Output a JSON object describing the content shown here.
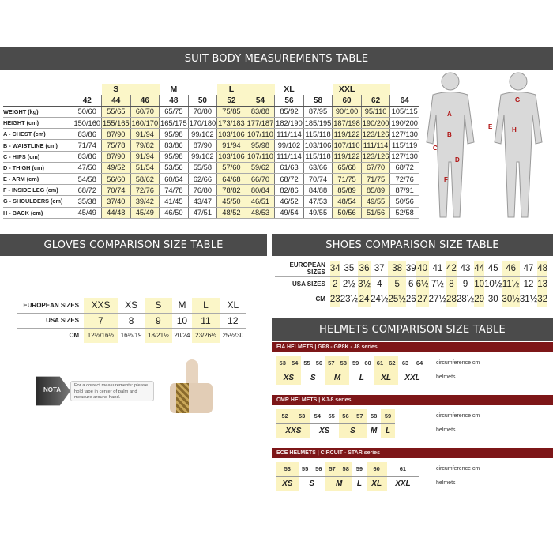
{
  "suit": {
    "title": "SUIT BODY MEASUREMENTS TABLE",
    "groups": [
      "",
      "",
      "S",
      "",
      "M",
      "",
      "L",
      "",
      "XL",
      "",
      "XXL",
      "",
      ""
    ],
    "group_hl": [
      false,
      true,
      true,
      false,
      false,
      true,
      true,
      false,
      false,
      true,
      true,
      false
    ],
    "sizes": [
      "42",
      "44",
      "46",
      "48",
      "50",
      "52",
      "54",
      "56",
      "58",
      "60",
      "62",
      "64"
    ],
    "rows": [
      {
        "label": "WEIGHT (kg)",
        "values": [
          "50/60",
          "55/65",
          "60/70",
          "65/75",
          "70/80",
          "75/85",
          "83/88",
          "85/92",
          "87/95",
          "90/100",
          "95/110",
          "105/115"
        ]
      },
      {
        "label": "HEIGHT (cm)",
        "values": [
          "150/160",
          "155/165",
          "160/170",
          "165/175",
          "170/180",
          "173/183",
          "177/187",
          "182/190",
          "185/195",
          "187/198",
          "190/200",
          "190/200"
        ]
      },
      {
        "label": "A - CHEST (cm)",
        "values": [
          "83/86",
          "87/90",
          "91/94",
          "95/98",
          "99/102",
          "103/106",
          "107/110",
          "111/114",
          "115/118",
          "119/122",
          "123/126",
          "127/130"
        ]
      },
      {
        "label": "B - WAISTLINE (cm)",
        "values": [
          "71/74",
          "75/78",
          "79/82",
          "83/86",
          "87/90",
          "91/94",
          "95/98",
          "99/102",
          "103/106",
          "107/110",
          "111/114",
          "115/119"
        ]
      },
      {
        "label": "C - HIPS (cm)",
        "values": [
          "83/86",
          "87/90",
          "91/94",
          "95/98",
          "99/102",
          "103/106",
          "107/110",
          "111/114",
          "115/118",
          "119/122",
          "123/126",
          "127/130"
        ]
      },
      {
        "label": "D - THIGH (cm)",
        "values": [
          "47/50",
          "49/52",
          "51/54",
          "53/56",
          "55/58",
          "57/60",
          "59/62",
          "61/63",
          "63/66",
          "65/68",
          "67/70",
          "68/72"
        ]
      },
      {
        "label": "E - ARM (cm)",
        "values": [
          "54/58",
          "56/60",
          "58/62",
          "60/64",
          "62/66",
          "64/68",
          "66/70",
          "68/72",
          "70/74",
          "71/75",
          "71/75",
          "72/76"
        ]
      },
      {
        "label": "F - INSIDE LEG (cm)",
        "values": [
          "68/72",
          "70/74",
          "72/76",
          "74/78",
          "76/80",
          "78/82",
          "80/84",
          "82/86",
          "84/88",
          "85/89",
          "85/89",
          "87/91"
        ]
      },
      {
        "label": "G - SHOULDERS (cm)",
        "values": [
          "35/38",
          "37/40",
          "39/42",
          "41/45",
          "43/47",
          "45/50",
          "46/51",
          "46/52",
          "47/53",
          "48/54",
          "49/55",
          "50/56"
        ]
      },
      {
        "label": "H - BACK (cm)",
        "values": [
          "45/49",
          "44/48",
          "45/49",
          "46/50",
          "47/51",
          "48/52",
          "48/53",
          "49/54",
          "49/55",
          "50/56",
          "51/56",
          "52/58"
        ]
      }
    ],
    "figure_letters": [
      "A",
      "B",
      "C",
      "D",
      "F",
      "G",
      "E",
      "H"
    ]
  },
  "gloves": {
    "title": "GLOVES COMPARISON SIZE TABLE",
    "rows": [
      {
        "label": "EUROPEAN SIZES",
        "values": [
          "XXS",
          "XS",
          "S",
          "M",
          "L",
          "XL"
        ]
      },
      {
        "label": "USA SIZES",
        "values": [
          "7",
          "8",
          "9",
          "10",
          "11",
          "12"
        ]
      },
      {
        "label": "CM",
        "values": [
          "12½/16½",
          "16½/19",
          "18/21½",
          "20/24",
          "23/26½",
          "25½/30"
        ]
      }
    ],
    "nota_label": "NOTA",
    "nota_text": "For a correct measurements: please hold tape in center of palm and measure around hand."
  },
  "shoes": {
    "title": "SHOES COMPARISON SIZE TABLE",
    "rows": [
      {
        "label": "EUROPEAN SIZES",
        "values": [
          "34",
          "35",
          "36",
          "37",
          "38",
          "39",
          "40",
          "41",
          "42",
          "43",
          "44",
          "45",
          "46",
          "47",
          "48"
        ]
      },
      {
        "label": "USA SIZES",
        "values": [
          "2",
          "2½",
          "3½",
          "4",
          "5",
          "6",
          "6½",
          "7½",
          "8",
          "9",
          "10",
          "10½",
          "11½",
          "12",
          "13"
        ]
      },
      {
        "label": "CM",
        "values": [
          "23",
          "23½",
          "24",
          "24½",
          "25½",
          "26",
          "27",
          "27½",
          "28",
          "28½",
          "29",
          "30",
          "30½",
          "31½",
          "32"
        ]
      }
    ]
  },
  "helmets": {
    "title": "HELMETS COMPARISON SIZE TABLE",
    "circ_label": "circumference cm",
    "helmets_label": "helmets",
    "tables": [
      {
        "title": "FIA HELMETS | GP8 - GP8K - J8 series",
        "circ": [
          "53",
          "54",
          "55",
          "56",
          "57",
          "58",
          "59",
          "60",
          "61",
          "62",
          "63",
          "64"
        ],
        "sizes": [
          {
            "s": "XS",
            "span": 2
          },
          {
            "s": "S",
            "span": 2
          },
          {
            "s": "M",
            "span": 2
          },
          {
            "s": "L",
            "span": 2
          },
          {
            "s": "XL",
            "span": 2
          },
          {
            "s": "XXL",
            "span": 2
          }
        ]
      },
      {
        "title": "CMR HELMETS | KJ-8 series",
        "circ": [
          "52",
          "53",
          "54",
          "55",
          "56",
          "57",
          "58",
          "59"
        ],
        "sizes": [
          {
            "s": "XXS",
            "span": 2
          },
          {
            "s": "XS",
            "span": 2
          },
          {
            "s": "S",
            "span": 2
          },
          {
            "s": "M",
            "span": 1
          },
          {
            "s": "L",
            "span": 1
          }
        ]
      },
      {
        "title": "ECE HELMETS | CIRCUIT - STAR series",
        "circ": [
          "53",
          "55",
          "56",
          "57",
          "58",
          "59",
          "60",
          "61"
        ],
        "sizes": [
          {
            "s": "XS",
            "span": 1
          },
          {
            "s": "S",
            "span": 2
          },
          {
            "s": "M",
            "span": 2
          },
          {
            "s": "L",
            "span": 1
          },
          {
            "s": "XL",
            "span": 1
          },
          {
            "s": "XXL",
            "span": 1
          }
        ]
      }
    ]
  },
  "colors": {
    "header_bar": "#4b4b4b",
    "helmet_bar": "#7d1618",
    "highlight": "#fbf6c8"
  }
}
